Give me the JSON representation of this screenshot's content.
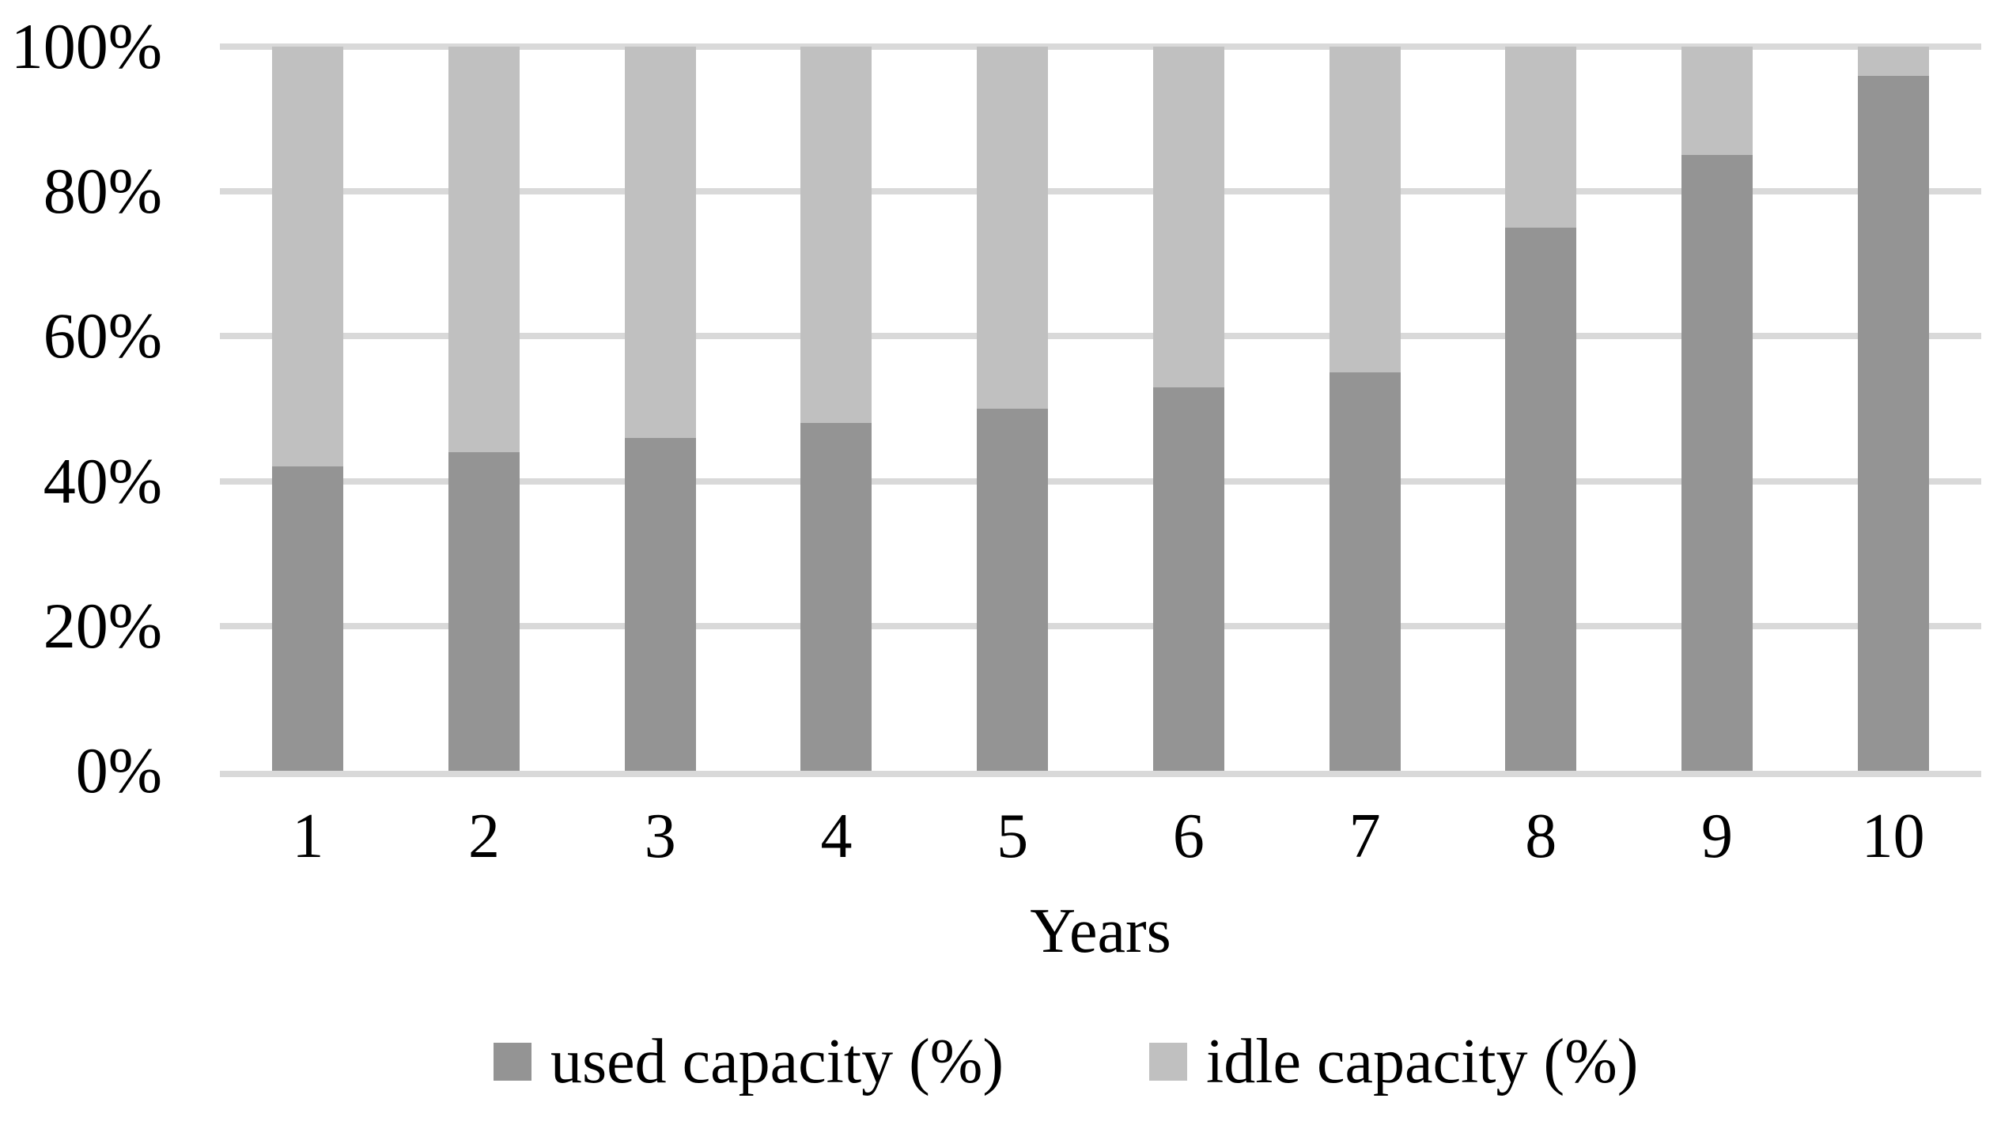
{
  "chart_data": {
    "type": "bar",
    "stacked": true,
    "title": "",
    "xlabel": "Years",
    "ylabel": "",
    "categories": [
      "1",
      "2",
      "3",
      "4",
      "5",
      "6",
      "7",
      "8",
      "9",
      "10"
    ],
    "series": [
      {
        "name": "used capacity (%)",
        "color": "#949494",
        "values": [
          42,
          44,
          46,
          48,
          50,
          53,
          55,
          75,
          85,
          96
        ]
      },
      {
        "name": "idle capacity (%)",
        "color": "#c0c0c0",
        "values": [
          58,
          56,
          54,
          52,
          50,
          47,
          45,
          25,
          15,
          4
        ]
      }
    ],
    "ylim": [
      0,
      100
    ],
    "y_ticks": [
      {
        "value": 0,
        "label": "0%"
      },
      {
        "value": 20,
        "label": "20%"
      },
      {
        "value": 40,
        "label": "40%"
      },
      {
        "value": 60,
        "label": "60%"
      },
      {
        "value": 80,
        "label": "80%"
      },
      {
        "value": 100,
        "label": "100%"
      }
    ],
    "grid": true,
    "gridline_color": "#d9d9d9",
    "background_color": "#ffffff",
    "legend_position": "bottom"
  }
}
